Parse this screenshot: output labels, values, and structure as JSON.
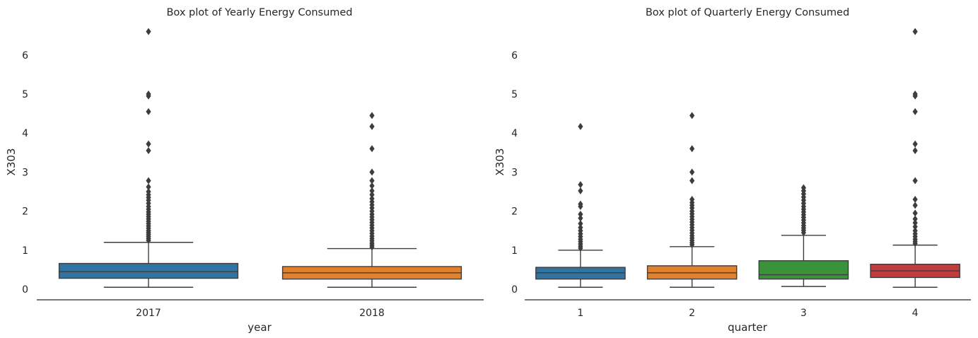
{
  "chart_data": [
    {
      "type": "box",
      "title": "Box plot of Yearly Energy Consumed",
      "xlabel": "year",
      "ylabel": "X303",
      "ylim": [
        -0.3,
        6.7
      ],
      "yticks": [
        0,
        1,
        2,
        3,
        4,
        5,
        6
      ],
      "grid": false,
      "legend": "none",
      "categories": [
        "2017",
        "2018"
      ],
      "boxes": [
        {
          "category": "2017",
          "color": "#3274a1",
          "whisker_low": 0.05,
          "q1": 0.28,
          "median": 0.45,
          "q3": 0.66,
          "whisker_high": 1.2,
          "outliers": [
            6.6,
            5.0,
            4.95,
            4.55,
            3.72,
            3.55,
            2.78,
            2.62,
            2.5,
            2.42,
            2.35,
            2.28,
            2.2,
            2.12,
            2.05,
            1.98,
            1.92,
            1.86,
            1.8,
            1.74,
            1.68,
            1.62,
            1.56,
            1.5,
            1.45,
            1.4,
            1.35,
            1.3,
            1.25
          ]
        },
        {
          "category": "2018",
          "color": "#e1812c",
          "whisker_low": 0.05,
          "q1": 0.26,
          "median": 0.42,
          "q3": 0.58,
          "whisker_high": 1.04,
          "outliers": [
            4.45,
            4.17,
            3.6,
            3.0,
            2.78,
            2.65,
            2.52,
            2.42,
            2.32,
            2.24,
            2.16,
            2.08,
            2.0,
            1.92,
            1.85,
            1.78,
            1.71,
            1.64,
            1.57,
            1.5,
            1.43,
            1.36,
            1.3,
            1.24,
            1.18,
            1.13,
            1.08
          ]
        }
      ]
    },
    {
      "type": "box",
      "title": "Box plot of Quarterly Energy Consumed",
      "xlabel": "quarter",
      "ylabel": "X303",
      "ylim": [
        -0.3,
        6.7
      ],
      "yticks": [
        0,
        1,
        2,
        3,
        4,
        5,
        6
      ],
      "grid": false,
      "legend": "none",
      "categories": [
        "1",
        "2",
        "3",
        "4"
      ],
      "boxes": [
        {
          "category": "1",
          "color": "#3274a1",
          "whisker_low": 0.05,
          "q1": 0.26,
          "median": 0.42,
          "q3": 0.56,
          "whisker_high": 1.0,
          "outliers": [
            4.17,
            2.68,
            2.52,
            2.18,
            2.12,
            1.92,
            1.82,
            1.68,
            1.58,
            1.5,
            1.42,
            1.35,
            1.28,
            1.22,
            1.16,
            1.1,
            1.05
          ]
        },
        {
          "category": "2",
          "color": "#e1812c",
          "whisker_low": 0.05,
          "q1": 0.26,
          "median": 0.42,
          "q3": 0.6,
          "whisker_high": 1.09,
          "outliers": [
            4.45,
            3.6,
            3.0,
            2.78,
            2.3,
            2.22,
            2.15,
            2.08,
            2.0,
            1.93,
            1.86,
            1.79,
            1.72,
            1.65,
            1.58,
            1.51,
            1.44,
            1.37,
            1.31,
            1.25,
            1.19,
            1.14
          ]
        },
        {
          "category": "3",
          "color": "#3a923a",
          "whisker_low": 0.07,
          "q1": 0.26,
          "median": 0.37,
          "q3": 0.73,
          "whisker_high": 1.38,
          "outliers": [
            2.6,
            2.52,
            2.44,
            2.36,
            2.28,
            2.2,
            2.12,
            2.05,
            1.98,
            1.91,
            1.84,
            1.77,
            1.7,
            1.63,
            1.57,
            1.51,
            1.45
          ]
        },
        {
          "category": "4",
          "color": "#c03d3e",
          "whisker_low": 0.05,
          "q1": 0.3,
          "median": 0.47,
          "q3": 0.64,
          "whisker_high": 1.13,
          "outliers": [
            6.6,
            5.0,
            4.95,
            4.55,
            3.72,
            3.55,
            2.78,
            2.3,
            2.15,
            1.95,
            1.8,
            1.7,
            1.6,
            1.5,
            1.42,
            1.35,
            1.28,
            1.22,
            1.17
          ]
        }
      ]
    }
  ]
}
